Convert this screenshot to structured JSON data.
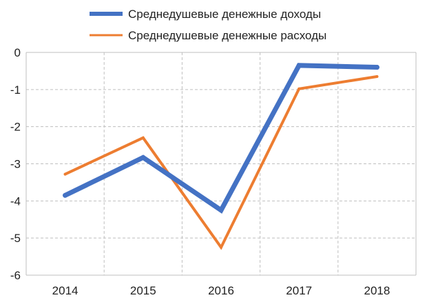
{
  "chart_data": {
    "type": "line",
    "categories": [
      "2014",
      "2015",
      "2016",
      "2017",
      "2018"
    ],
    "series": [
      {
        "name": "Среднедушевые денежные доходы",
        "color": "#4472c4",
        "values": [
          -3.85,
          -2.83,
          -4.25,
          -0.35,
          -0.4
        ]
      },
      {
        "name": "Среднедушевые денежные расходы",
        "color": "#ed7d31",
        "values": [
          -3.28,
          -2.3,
          -5.25,
          -0.98,
          -0.65
        ]
      }
    ],
    "ylim": [
      -6,
      0
    ],
    "y_ticks": [
      "0",
      "-1",
      "-2",
      "-3",
      "-4",
      "-5",
      "-6"
    ],
    "grid": true,
    "grid_style": "dashed",
    "legend_position": "top"
  }
}
